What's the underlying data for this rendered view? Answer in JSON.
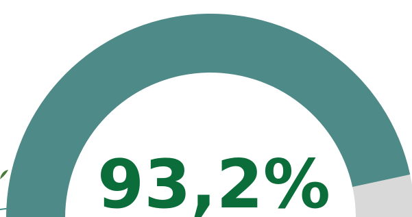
{
  "chart_data": {
    "type": "gauge",
    "values": [
      93.2
    ],
    "value_labels": [
      "93,2%"
    ],
    "ylim": [
      0,
      100
    ],
    "color": "#4e8a87",
    "track_color": "#d9d9d9",
    "label_color": "#0b6e3a"
  }
}
